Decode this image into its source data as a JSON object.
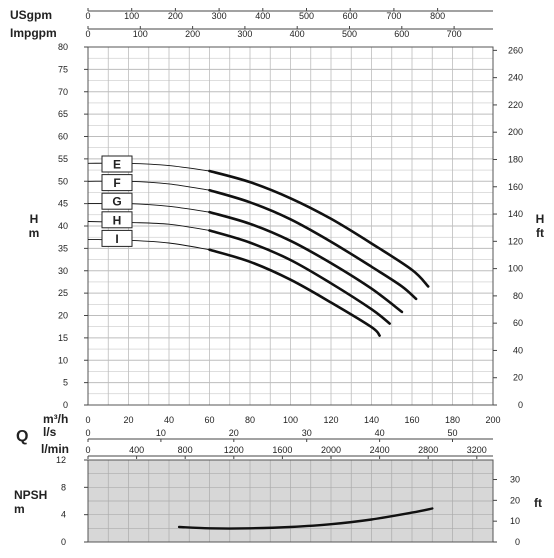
{
  "chart_data": [
    {
      "type": "line",
      "title": "",
      "top_scales": [
        {
          "label": "USgpm",
          "ticks": [
            "0",
            "100",
            "200",
            "300",
            "400",
            "500",
            "600",
            "700",
            "800"
          ]
        },
        {
          "label": "Impgpm",
          "ticks": [
            "0",
            "100",
            "200",
            "300",
            "400",
            "500",
            "600",
            "700"
          ]
        }
      ],
      "ylabel_left": "H\nm",
      "ylabel_right": "H\nft",
      "ylim": [
        0,
        80
      ],
      "y_ticks_m": [
        "0",
        "5",
        "10",
        "15",
        "20",
        "25",
        "30",
        "35",
        "40",
        "45",
        "50",
        "55",
        "60",
        "65",
        "70",
        "75",
        "80"
      ],
      "y_ticks_ft": [
        "0",
        "20",
        "40",
        "60",
        "80",
        "100",
        "120",
        "140",
        "160",
        "180",
        "200",
        "220",
        "240",
        "260"
      ],
      "grid": true,
      "bottom_scales": [
        {
          "label": "m³/h",
          "ticks": [
            "0",
            "20",
            "40",
            "60",
            "80",
            "100",
            "120",
            "140",
            "160",
            "180",
            "200"
          ]
        },
        {
          "label": "l/s",
          "ticks": [
            "0",
            "10",
            "20",
            "30",
            "40",
            "50"
          ]
        },
        {
          "label": "l/min",
          "ticks": [
            "0",
            "400",
            "800",
            "1200",
            "1600",
            "2000",
            "2400",
            "2800",
            "3200"
          ]
        }
      ],
      "axis_label": "Q",
      "xlim": [
        0,
        200
      ],
      "series": [
        {
          "name": "E",
          "x": [
            0,
            20,
            40,
            60,
            80,
            100,
            120,
            140,
            160,
            168
          ],
          "y": [
            54,
            54,
            53.5,
            52.3,
            49.8,
            46.2,
            41.6,
            36.1,
            30.2,
            26.5
          ]
        },
        {
          "name": "F",
          "x": [
            0,
            20,
            40,
            60,
            80,
            100,
            120,
            140,
            155,
            162
          ],
          "y": [
            50,
            50,
            49.4,
            48,
            45.3,
            41.5,
            36.5,
            30.9,
            26.5,
            23.7
          ]
        },
        {
          "name": "G",
          "x": [
            0,
            20,
            40,
            60,
            80,
            100,
            120,
            140,
            155
          ],
          "y": [
            45,
            45,
            44.4,
            43.1,
            40.5,
            36.7,
            31.7,
            26,
            20.8
          ]
        },
        {
          "name": "H",
          "x": [
            0,
            20,
            40,
            60,
            80,
            100,
            120,
            140,
            149
          ],
          "y": [
            41,
            40.8,
            40.4,
            39,
            36.3,
            32.4,
            27.2,
            21.4,
            18.2
          ]
        },
        {
          "name": "I",
          "x": [
            0,
            20,
            40,
            60,
            80,
            100,
            120,
            140,
            144
          ],
          "y": [
            37,
            36.8,
            36.2,
            34.7,
            32,
            28,
            22.9,
            17.4,
            15.5
          ]
        }
      ]
    },
    {
      "type": "line",
      "ylabel_left": "NPSH\nm",
      "ylabel_right": "ft",
      "ylim": [
        0,
        12
      ],
      "y_ticks_m": [
        "0",
        "4",
        "8",
        "12"
      ],
      "y_ticks_ft": [
        "0",
        "10",
        "20",
        "30"
      ],
      "xlim": [
        0,
        200
      ],
      "series": [
        {
          "name": "",
          "x": [
            45,
            60,
            80,
            100,
            120,
            140,
            160,
            170
          ],
          "y": [
            2.2,
            2,
            2,
            2.2,
            2.6,
            3.3,
            4.3,
            4.9
          ]
        }
      ]
    }
  ],
  "colors": {
    "curve": "#111111",
    "grid": "#bdbdbd",
    "npsh_bg": "#d7d7d7",
    "frame": "#555555"
  }
}
